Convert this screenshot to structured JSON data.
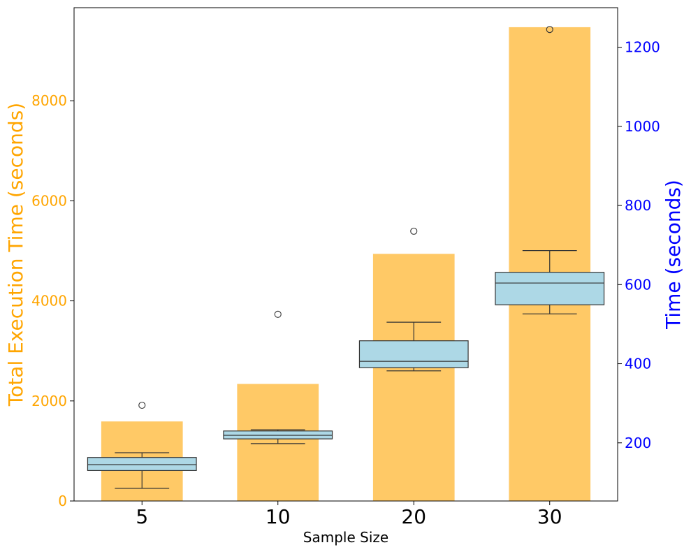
{
  "chart_data": {
    "type": "bar+box",
    "xlabel": "Sample Size",
    "categories": [
      "5",
      "10",
      "20",
      "30"
    ],
    "bars": {
      "axis": "left",
      "color": "#ffc966",
      "ylabel": "Total Execution Time (seconds)",
      "ylabel_color": "#ffa500",
      "ylim": [
        0,
        9860
      ],
      "yticks": [
        0,
        2000,
        4000,
        6000,
        8000
      ],
      "values": [
        1590,
        2340,
        4940,
        9470
      ]
    },
    "boxes": {
      "axis": "right",
      "fill": "#add8e6",
      "stroke": "#333333",
      "ylabel": "Time (seconds)",
      "ylabel_color": "#0000ff",
      "ylim": [
        53,
        1300
      ],
      "yticks": [
        200,
        400,
        600,
        800,
        1000,
        1200
      ],
      "stats": [
        {
          "whislo": 85,
          "q1": 130,
          "med": 145,
          "q3": 163,
          "whishi": 175,
          "fliers": [
            295
          ]
        },
        {
          "whislo": 198,
          "q1": 210,
          "med": 219,
          "q3": 230,
          "whislo_note": "",
          "whishi": 233,
          "fliers": [
            525
          ]
        },
        {
          "whislo": 382,
          "q1": 390,
          "med": 406,
          "q3": 458,
          "whishi": 505,
          "fliers": [
            735
          ]
        },
        {
          "whislo": 526,
          "q1": 549,
          "med": 604,
          "q3": 631,
          "whishi": 686,
          "fliers": [
            1245
          ]
        }
      ]
    }
  }
}
